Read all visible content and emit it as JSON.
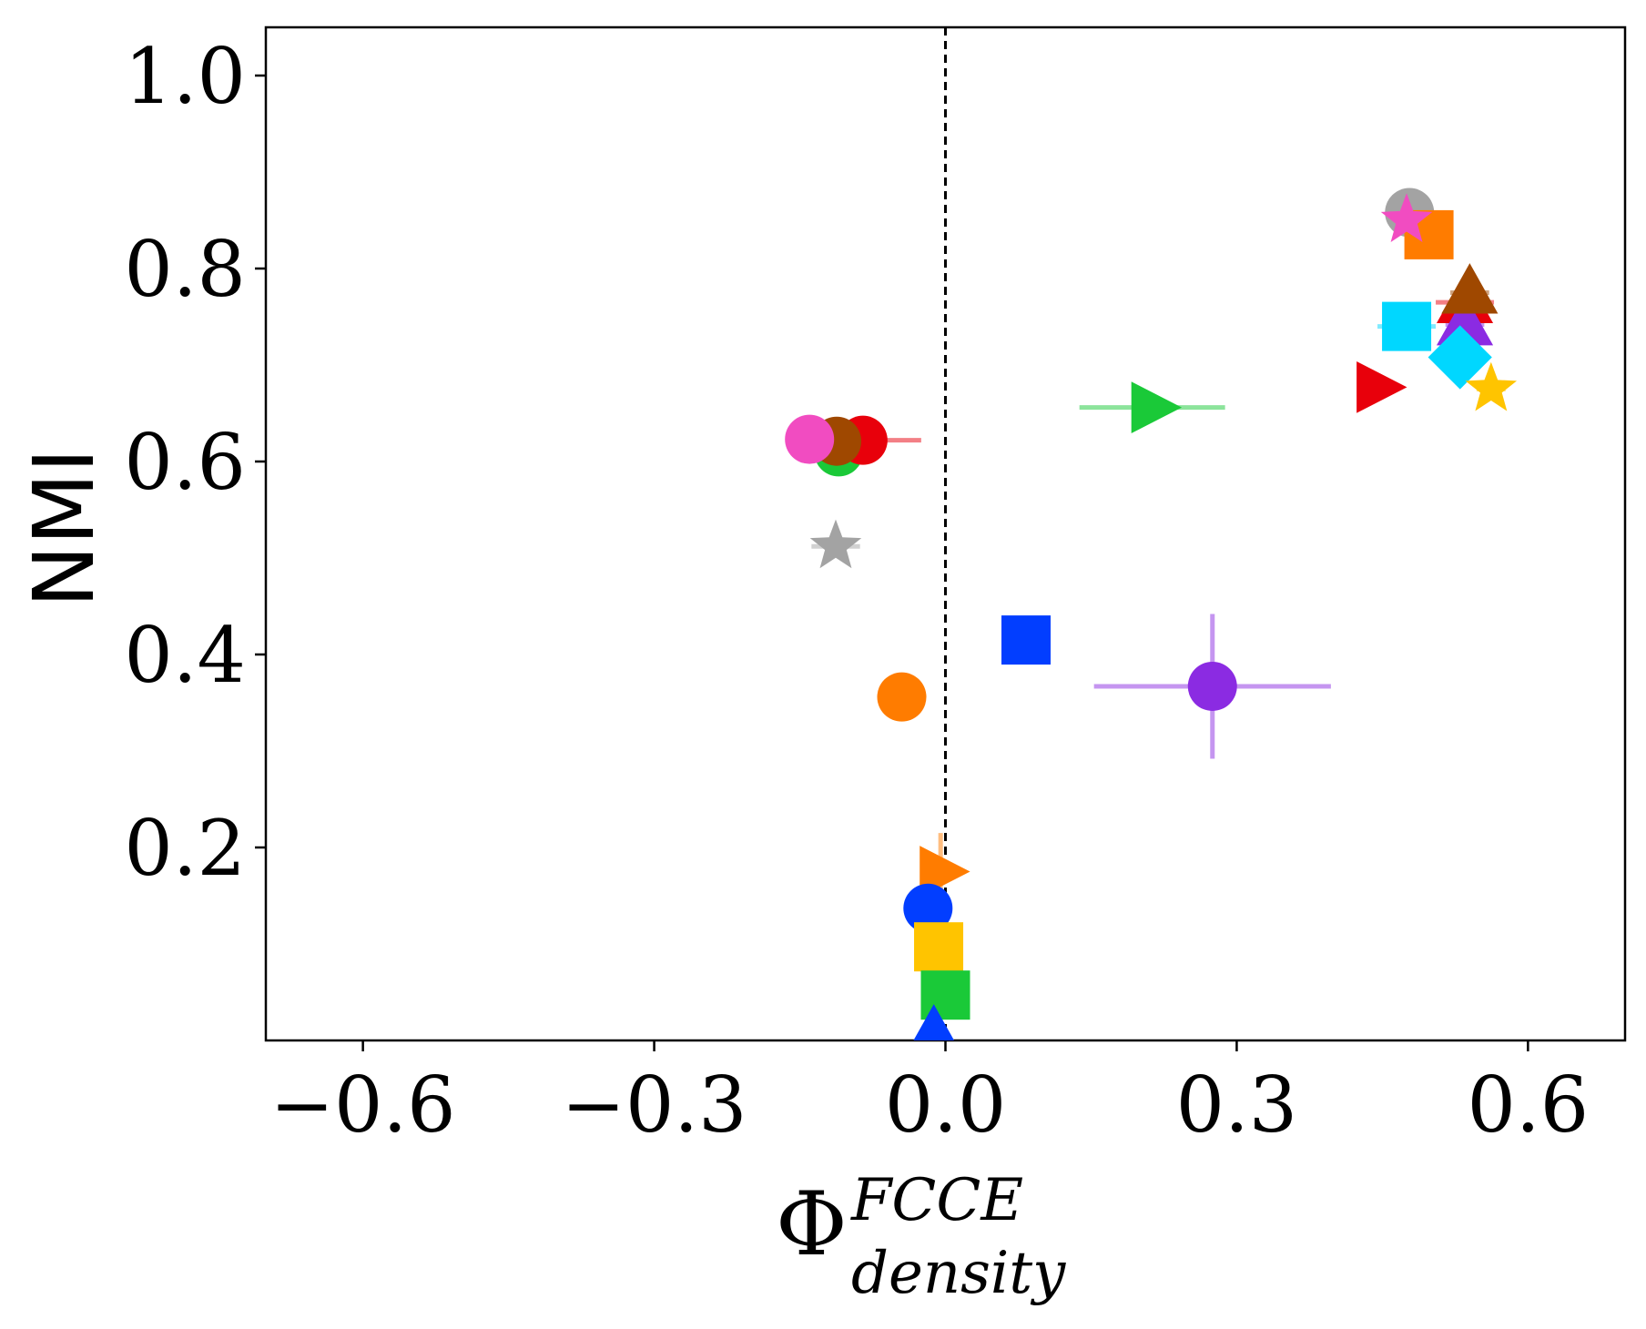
{
  "chart_data": {
    "type": "scatter",
    "title": "",
    "xlabel": {
      "base": "Φ",
      "superscript": "FCCE",
      "subscript": "density"
    },
    "ylabel": "NMI",
    "xlim": [
      -0.7,
      0.7
    ],
    "ylim": [
      0.0,
      1.05
    ],
    "xticks": [
      -0.6,
      -0.3,
      0.0,
      0.3,
      0.6
    ],
    "xtick_labels": [
      "−0.6",
      "−0.3",
      "0.0",
      "0.3",
      "0.6"
    ],
    "yticks": [
      0.2,
      0.4,
      0.6,
      0.8,
      1.0
    ],
    "ytick_labels": [
      "0.2",
      "0.4",
      "0.6",
      "0.8",
      "1.0"
    ],
    "grid": false,
    "reference_line": {
      "x": 0.0,
      "style": "dashed",
      "color": "#000000"
    },
    "points": [
      {
        "x": -0.11,
        "y": 0.61,
        "xerr": 0.0,
        "yerr": 0.0,
        "marker": "circle",
        "color": "#1ac938"
      },
      {
        "x": -0.085,
        "y": 0.622,
        "xerr": 0.06,
        "yerr": 0.0,
        "marker": "circle",
        "color": "#e8000b"
      },
      {
        "x": -0.112,
        "y": 0.621,
        "xerr": 0.0,
        "yerr": 0.0,
        "marker": "circle",
        "color": "#9f4800"
      },
      {
        "x": -0.14,
        "y": 0.623,
        "xerr": 0.02,
        "yerr": 0.0,
        "marker": "circle",
        "color": "#f14cc1"
      },
      {
        "x": -0.113,
        "y": 0.512,
        "xerr": 0.025,
        "yerr": 0.0,
        "marker": "star",
        "color": "#a3a3a3"
      },
      {
        "x": -0.045,
        "y": 0.356,
        "xerr": 0.0,
        "yerr": 0.0,
        "marker": "circle",
        "color": "#ff7c00"
      },
      {
        "x": 0.083,
        "y": 0.415,
        "xerr": 0.0,
        "yerr": 0.0,
        "marker": "square",
        "color": "#023eff"
      },
      {
        "x": 0.275,
        "y": 0.367,
        "xerr": 0.122,
        "yerr": 0.075,
        "marker": "circle",
        "color": "#8b2be2"
      },
      {
        "x": 0.213,
        "y": 0.656,
        "xerr": 0.075,
        "yerr": 0.0,
        "marker": "triangle-right",
        "color": "#1ac938"
      },
      {
        "x": -0.005,
        "y": 0.175,
        "xerr": 0.0,
        "yerr": 0.04,
        "marker": "triangle-right",
        "color": "#ff7c00"
      },
      {
        "x": -0.018,
        "y": 0.137,
        "xerr": 0.0,
        "yerr": 0.0,
        "marker": "circle",
        "color": "#023eff"
      },
      {
        "x": -0.007,
        "y": 0.097,
        "xerr": 0.0,
        "yerr": 0.0,
        "marker": "square",
        "color": "#ffc400"
      },
      {
        "x": 0.0,
        "y": 0.047,
        "xerr": 0.0,
        "yerr": 0.0,
        "marker": "square",
        "color": "#1ac938"
      },
      {
        "x": -0.012,
        "y": 0.007,
        "xerr": 0.0,
        "yerr": 0.0,
        "marker": "triangle-up",
        "color": "#023eff"
      },
      {
        "x": 0.478,
        "y": 0.858,
        "xerr": 0.0,
        "yerr": 0.0,
        "marker": "circle",
        "color": "#a3a3a3"
      },
      {
        "x": 0.498,
        "y": 0.835,
        "xerr": 0.02,
        "yerr": 0.0,
        "marker": "square",
        "color": "#ff7c00"
      },
      {
        "x": 0.475,
        "y": 0.85,
        "xerr": 0.0,
        "yerr": 0.0,
        "marker": "star",
        "color": "#f14cc1"
      },
      {
        "x": 0.535,
        "y": 0.765,
        "xerr": 0.03,
        "yerr": 0.0,
        "marker": "triangle-up",
        "color": "#e8000b"
      },
      {
        "x": 0.535,
        "y": 0.742,
        "xerr": 0.02,
        "yerr": 0.0,
        "marker": "triangle-up",
        "color": "#8b2be2"
      },
      {
        "x": 0.54,
        "y": 0.775,
        "xerr": 0.02,
        "yerr": 0.0,
        "marker": "triangle-up",
        "color": "#9f4800"
      },
      {
        "x": 0.475,
        "y": 0.74,
        "xerr": 0.03,
        "yerr": 0.0,
        "marker": "square",
        "color": "#00d7ff"
      },
      {
        "x": 0.53,
        "y": 0.708,
        "xerr": 0.0,
        "yerr": 0.0,
        "marker": "diamond",
        "color": "#00d7ff"
      },
      {
        "x": 0.445,
        "y": 0.677,
        "xerr": 0.0,
        "yerr": 0.0,
        "marker": "triangle-right",
        "color": "#e8000b"
      },
      {
        "x": 0.562,
        "y": 0.675,
        "xerr": 0.015,
        "yerr": 0.0,
        "marker": "star",
        "color": "#ffc400"
      }
    ]
  }
}
